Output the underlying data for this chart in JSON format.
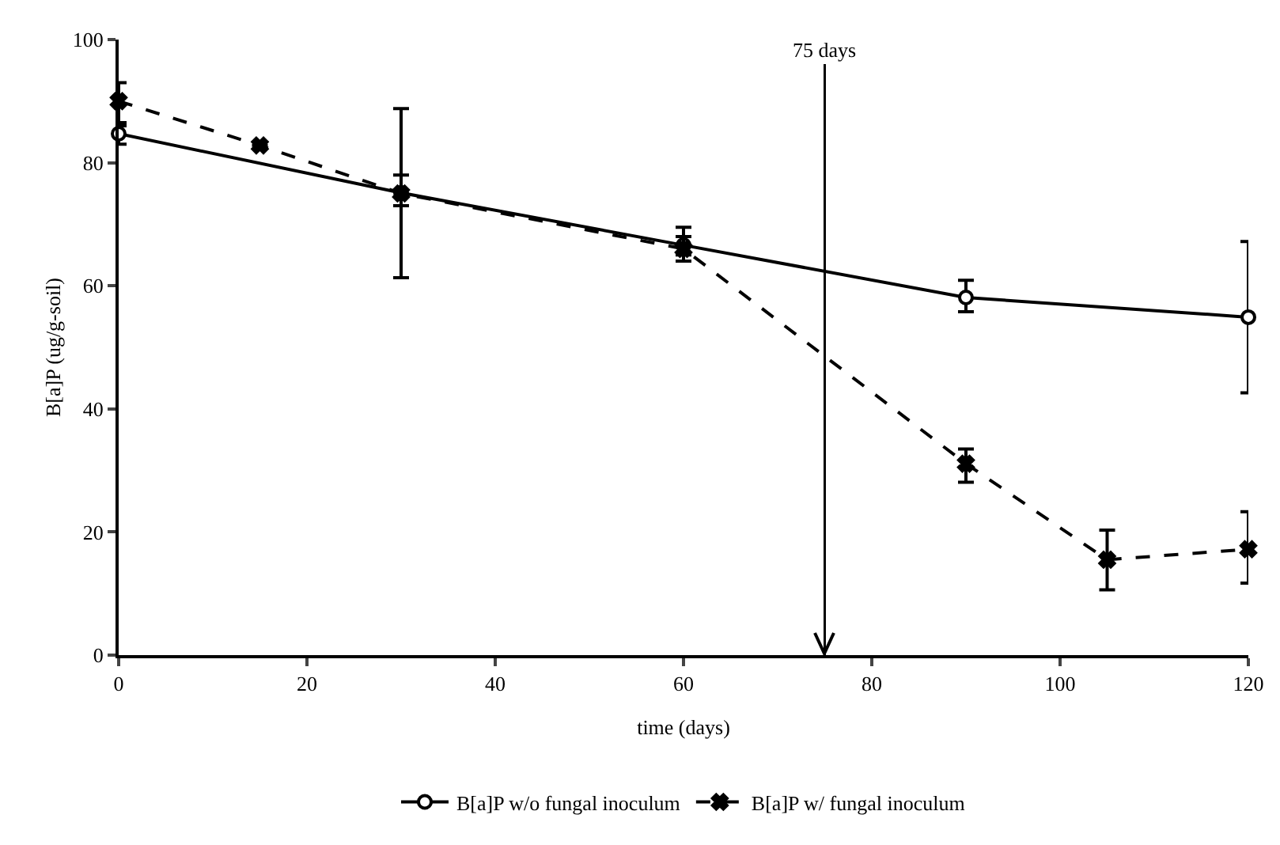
{
  "chart_data": {
    "type": "line",
    "xlabel": "time (days)",
    "ylabel": "B[a]P (ug/g-soil)",
    "series": [
      {
        "name": "B[a]P w/o fungal inoculum",
        "color": "#000000",
        "marker": "circle",
        "line_style": "solid",
        "x": [
          0,
          30,
          60,
          90,
          120
        ],
        "values": [
          84.7,
          75.1,
          66.6,
          58.1,
          54.9
        ],
        "errors": [
          [
            83,
            86.5
          ],
          [
            61.3,
            88.8
          ],
          [
            65,
            68
          ],
          [
            55.8,
            60.9
          ],
          [
            42.6,
            67.2
          ]
        ]
      },
      {
        "name": "B[a]P w/ fungal inoculum",
        "color": "#000000",
        "marker": "cross",
        "line_style": "dashed",
        "x": [
          0,
          15,
          30,
          60,
          90,
          105,
          120
        ],
        "values": [
          90,
          82.8,
          75,
          66,
          31.1,
          15.5,
          17.2
        ],
        "errors": [
          [
            86,
            93
          ],
          null,
          [
            73,
            78
          ],
          [
            64,
            69.5
          ],
          [
            28.1,
            33.5
          ],
          [
            10.6,
            20.3
          ],
          [
            11.7,
            23.3
          ]
        ]
      }
    ],
    "ref_lines": [
      {
        "axis": "x",
        "value": 75,
        "label": "75 days"
      }
    ],
    "xlim": [
      0,
      120
    ],
    "xticks": [
      0,
      20,
      40,
      60,
      80,
      100,
      120
    ],
    "ylim": [
      0,
      100
    ],
    "yticks": [
      0,
      20,
      40,
      60,
      80,
      100
    ],
    "grid": false,
    "legend": "bottom"
  }
}
